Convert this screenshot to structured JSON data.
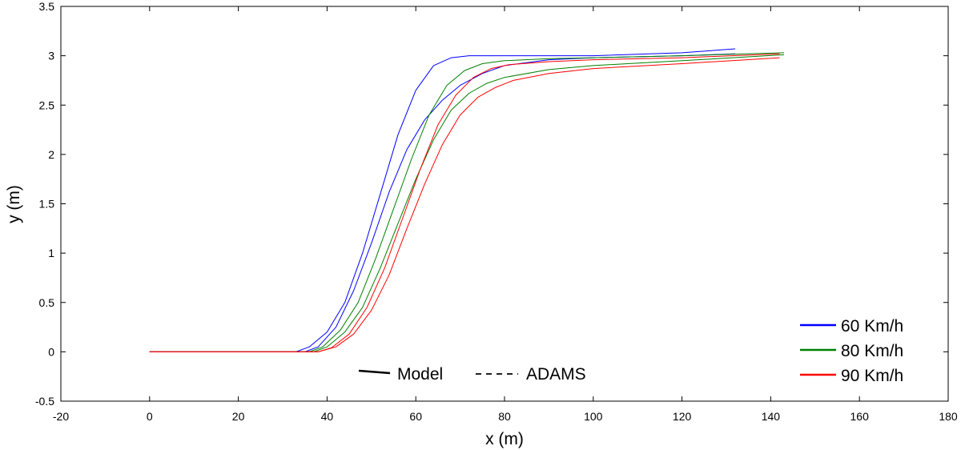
{
  "chart_data": {
    "type": "line",
    "xlabel": "x (m)",
    "ylabel": "y (m)",
    "xlim": [
      -20,
      180
    ],
    "ylim": [
      -0.5,
      3.5
    ],
    "xticks": [
      "-20",
      "0",
      "20",
      "40",
      "60",
      "80",
      "100",
      "120",
      "140",
      "160",
      "180"
    ],
    "yticks": [
      "-0.5",
      "0",
      "0.5",
      "1",
      "1.5",
      "2",
      "2.5",
      "3",
      "3.5"
    ],
    "grid": false,
    "legend": {
      "placement": "bottom-right",
      "entries": [
        {
          "label": "60 Km/h",
          "color": "#0000ff"
        },
        {
          "label": "80 Km/h",
          "color": "#008000"
        },
        {
          "label": "90 Km/h",
          "color": "#ff0000"
        }
      ]
    },
    "style_legend": {
      "placement": "bottom-center",
      "entries": [
        {
          "label": "Model",
          "style": "solid"
        },
        {
          "label": "ADAMS",
          "style": "dashed"
        }
      ]
    },
    "series": [
      {
        "speed": "60 Km/h",
        "kind": "Model",
        "color": "#0000ff",
        "x": [
          0,
          33,
          36,
          40,
          44,
          48,
          52,
          56,
          60,
          64,
          68,
          72,
          80,
          100,
          120,
          132
        ],
        "y": [
          0,
          0,
          0.05,
          0.2,
          0.5,
          1.0,
          1.6,
          2.2,
          2.65,
          2.9,
          2.98,
          3.0,
          3.0,
          3.0,
          3.03,
          3.07
        ]
      },
      {
        "speed": "60 Km/h",
        "kind": "ADAMS",
        "color": "#0000ff",
        "x": [
          0,
          35,
          38,
          42,
          46,
          50,
          54,
          58,
          62,
          66,
          70,
          75,
          80,
          90,
          100,
          120,
          132
        ],
        "y": [
          0,
          0,
          0.05,
          0.25,
          0.62,
          1.1,
          1.62,
          2.05,
          2.35,
          2.55,
          2.7,
          2.82,
          2.9,
          2.96,
          2.98,
          3.0,
          3.02
        ]
      },
      {
        "speed": "80 Km/h",
        "kind": "Model",
        "color": "#008000",
        "x": [
          0,
          36,
          39,
          43,
          47,
          51,
          55,
          59,
          63,
          67,
          71,
          75,
          80,
          90,
          100,
          120,
          143
        ],
        "y": [
          0,
          0,
          0.05,
          0.22,
          0.5,
          0.95,
          1.45,
          1.95,
          2.4,
          2.7,
          2.85,
          2.92,
          2.95,
          2.97,
          2.98,
          3.0,
          3.03
        ]
      },
      {
        "speed": "80 Km/h",
        "kind": "ADAMS",
        "color": "#008000",
        "x": [
          0,
          37,
          40,
          44,
          48,
          52,
          56,
          60,
          64,
          68,
          72,
          76,
          80,
          90,
          100,
          120,
          143
        ],
        "y": [
          0,
          0,
          0.05,
          0.2,
          0.45,
          0.85,
          1.3,
          1.75,
          2.15,
          2.45,
          2.62,
          2.72,
          2.78,
          2.86,
          2.9,
          2.95,
          3.01
        ]
      },
      {
        "speed": "90 Km/h",
        "kind": "Model",
        "color": "#ff0000",
        "x": [
          0,
          38,
          41,
          45,
          49,
          53,
          57,
          61,
          65,
          69,
          73,
          77,
          81,
          90,
          100,
          120,
          142
        ],
        "y": [
          0,
          0,
          0.04,
          0.18,
          0.45,
          0.85,
          1.35,
          1.85,
          2.3,
          2.6,
          2.78,
          2.87,
          2.91,
          2.94,
          2.96,
          2.98,
          3.02
        ]
      },
      {
        "speed": "90 Km/h",
        "kind": "ADAMS",
        "color": "#ff0000",
        "x": [
          0,
          38,
          42,
          46,
          50,
          54,
          58,
          62,
          66,
          70,
          74,
          78,
          82,
          90,
          100,
          120,
          142
        ],
        "y": [
          0,
          0,
          0.05,
          0.18,
          0.42,
          0.78,
          1.25,
          1.7,
          2.1,
          2.4,
          2.58,
          2.68,
          2.75,
          2.82,
          2.87,
          2.92,
          2.98
        ]
      }
    ]
  }
}
